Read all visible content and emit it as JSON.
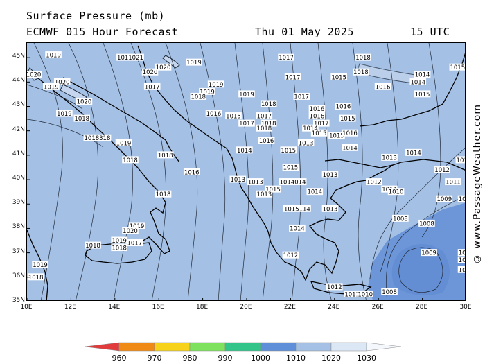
{
  "header": {
    "title": "Surface Pressure (mb)",
    "model": "ECMWF 015 Hour Forecast",
    "date": "Thu 01 May 2025",
    "time": "15 UTC"
  },
  "watermark": "© www.PassageWeather.com",
  "map": {
    "lat_labels": [
      "45N",
      "44N",
      "43N",
      "42N",
      "41N",
      "40N",
      "39N",
      "38N",
      "37N",
      "36N",
      "35N"
    ],
    "lon_labels": [
      "10E",
      "12E",
      "14E",
      "16E",
      "18E",
      "20E",
      "22E",
      "24E",
      "26E",
      "28E",
      "30E"
    ],
    "lat_range": [
      35,
      45.6
    ],
    "lon_range": [
      10,
      30
    ],
    "colors": {
      "sea": "#a4c0e4",
      "low_pressure_1010": "#6d96d8",
      "contour": "#202a3a",
      "land_highlight": "#c6d6ee"
    },
    "isobar_labels": [
      {
        "text": "1019",
        "lon": 11.2,
        "lat": 45.1
      },
      {
        "text": "1011021",
        "lon": 14.7,
        "lat": 45.0
      },
      {
        "text": "1019",
        "lon": 17.6,
        "lat": 44.8
      },
      {
        "text": "1017",
        "lon": 21.8,
        "lat": 45.0
      },
      {
        "text": "1018",
        "lon": 25.3,
        "lat": 45.0
      },
      {
        "text": "1015",
        "lon": 29.6,
        "lat": 44.6
      },
      {
        "text": "1020",
        "lon": 10.3,
        "lat": 44.3
      },
      {
        "text": "1020",
        "lon": 15.6,
        "lat": 44.4
      },
      {
        "text": "1020",
        "lon": 16.2,
        "lat": 44.6
      },
      {
        "text": "1018",
        "lon": 25.2,
        "lat": 44.4
      },
      {
        "text": "1015",
        "lon": 24.2,
        "lat": 44.2
      },
      {
        "text": "1014",
        "lon": 28.0,
        "lat": 44.3
      },
      {
        "text": "1014",
        "lon": 27.8,
        "lat": 44.0
      },
      {
        "text": "1017",
        "lon": 22.1,
        "lat": 44.2
      },
      {
        "text": "1020",
        "lon": 11.6,
        "lat": 44.0
      },
      {
        "text": "1019",
        "lon": 11.1,
        "lat": 43.8
      },
      {
        "text": "1017",
        "lon": 15.7,
        "lat": 43.8
      },
      {
        "text": "1019",
        "lon": 18.6,
        "lat": 43.9
      },
      {
        "text": "1016",
        "lon": 26.2,
        "lat": 43.8
      },
      {
        "text": "1019",
        "lon": 18.2,
        "lat": 43.6
      },
      {
        "text": "1018",
        "lon": 17.8,
        "lat": 43.4
      },
      {
        "text": "1019",
        "lon": 20.0,
        "lat": 43.5
      },
      {
        "text": "1017",
        "lon": 22.5,
        "lat": 43.4
      },
      {
        "text": "1015",
        "lon": 28.0,
        "lat": 43.5
      },
      {
        "text": "1020",
        "lon": 12.6,
        "lat": 43.2
      },
      {
        "text": "1018",
        "lon": 21.0,
        "lat": 43.1
      },
      {
        "text": "1016",
        "lon": 23.2,
        "lat": 42.9
      },
      {
        "text": "1016",
        "lon": 24.4,
        "lat": 43.0
      },
      {
        "text": "1019",
        "lon": 11.7,
        "lat": 42.7
      },
      {
        "text": "1018",
        "lon": 12.5,
        "lat": 42.5
      },
      {
        "text": "1016",
        "lon": 18.5,
        "lat": 42.7
      },
      {
        "text": "1015",
        "lon": 19.4,
        "lat": 42.6
      },
      {
        "text": "1017",
        "lon": 20.8,
        "lat": 42.6
      },
      {
        "text": "1016",
        "lon": 23.2,
        "lat": 42.6
      },
      {
        "text": "1015",
        "lon": 24.6,
        "lat": 42.5
      },
      {
        "text": "1017",
        "lon": 20.0,
        "lat": 42.3
      },
      {
        "text": "1018",
        "lon": 21.0,
        "lat": 42.3
      },
      {
        "text": "1017",
        "lon": 23.4,
        "lat": 42.3
      },
      {
        "text": "1018",
        "lon": 20.8,
        "lat": 42.1
      },
      {
        "text": "1014",
        "lon": 22.9,
        "lat": 42.1
      },
      {
        "text": "1015",
        "lon": 23.3,
        "lat": 41.9
      },
      {
        "text": "1015",
        "lon": 24.1,
        "lat": 41.8
      },
      {
        "text": "1016",
        "lon": 24.7,
        "lat": 41.9
      },
      {
        "text": "1016",
        "lon": 20.9,
        "lat": 41.6
      },
      {
        "text": "1018318",
        "lon": 13.2,
        "lat": 41.7
      },
      {
        "text": "1019",
        "lon": 14.4,
        "lat": 41.5
      },
      {
        "text": "1013",
        "lon": 22.7,
        "lat": 41.5
      },
      {
        "text": "1014",
        "lon": 24.7,
        "lat": 41.3
      },
      {
        "text": "1014",
        "lon": 19.9,
        "lat": 41.2
      },
      {
        "text": "1015",
        "lon": 21.9,
        "lat": 41.2
      },
      {
        "text": "1014",
        "lon": 27.6,
        "lat": 41.1
      },
      {
        "text": "1018",
        "lon": 16.3,
        "lat": 41.0
      },
      {
        "text": "1013",
        "lon": 26.5,
        "lat": 40.9
      },
      {
        "text": "101",
        "lon": 29.8,
        "lat": 40.8
      },
      {
        "text": "1018",
        "lon": 14.7,
        "lat": 40.8
      },
      {
        "text": "1015",
        "lon": 22.0,
        "lat": 40.5
      },
      {
        "text": "1012",
        "lon": 28.9,
        "lat": 40.4
      },
      {
        "text": "1016",
        "lon": 17.5,
        "lat": 40.3
      },
      {
        "text": "1013",
        "lon": 23.8,
        "lat": 40.2
      },
      {
        "text": "1013",
        "lon": 19.6,
        "lat": 40.0
      },
      {
        "text": "1013",
        "lon": 20.4,
        "lat": 39.9
      },
      {
        "text": "1014014",
        "lon": 22.1,
        "lat": 39.9
      },
      {
        "text": "1012",
        "lon": 25.8,
        "lat": 39.9
      },
      {
        "text": "1011",
        "lon": 29.4,
        "lat": 39.9
      },
      {
        "text": "1015",
        "lon": 21.2,
        "lat": 39.6
      },
      {
        "text": "1014",
        "lon": 23.1,
        "lat": 39.5
      },
      {
        "text": "1011",
        "lon": 26.5,
        "lat": 39.6
      },
      {
        "text": "1010",
        "lon": 26.8,
        "lat": 39.5
      },
      {
        "text": "1018",
        "lon": 16.2,
        "lat": 39.4
      },
      {
        "text": "1013",
        "lon": 20.8,
        "lat": 39.4
      },
      {
        "text": "1009",
        "lon": 29.0,
        "lat": 39.2
      },
      {
        "text": "100",
        "lon": 29.9,
        "lat": 39.2
      },
      {
        "text": "1015114",
        "lon": 22.3,
        "lat": 38.8
      },
      {
        "text": "1013",
        "lon": 23.8,
        "lat": 38.8
      },
      {
        "text": "1008",
        "lon": 27.0,
        "lat": 38.4
      },
      {
        "text": "1008",
        "lon": 28.2,
        "lat": 38.2
      },
      {
        "text": "1019",
        "lon": 15.0,
        "lat": 38.1
      },
      {
        "text": "1020",
        "lon": 14.7,
        "lat": 37.9
      },
      {
        "text": "1014",
        "lon": 22.3,
        "lat": 38.0
      },
      {
        "text": "1019",
        "lon": 14.2,
        "lat": 37.5
      },
      {
        "text": "1017",
        "lon": 14.9,
        "lat": 37.4
      },
      {
        "text": "1018",
        "lon": 13.0,
        "lat": 37.3
      },
      {
        "text": "1018",
        "lon": 14.2,
        "lat": 37.2
      },
      {
        "text": "1009",
        "lon": 28.3,
        "lat": 37.0
      },
      {
        "text": "100",
        "lon": 29.9,
        "lat": 37.0
      },
      {
        "text": "100",
        "lon": 29.9,
        "lat": 36.7
      },
      {
        "text": "1012",
        "lon": 22.0,
        "lat": 36.9
      },
      {
        "text": "101",
        "lon": 29.9,
        "lat": 36.3
      },
      {
        "text": "1019",
        "lon": 10.6,
        "lat": 36.5
      },
      {
        "text": "1018",
        "lon": 10.4,
        "lat": 36.0
      },
      {
        "text": "1008",
        "lon": 26.5,
        "lat": 35.4
      },
      {
        "text": "1012",
        "lon": 24.0,
        "lat": 35.6
      },
      {
        "text": "1011",
        "lon": 24.8,
        "lat": 35.3
      },
      {
        "text": "1010",
        "lon": 25.4,
        "lat": 35.3
      }
    ]
  },
  "legend": {
    "labels": [
      "960",
      "970",
      "980",
      "990",
      "1000",
      "1010",
      "1020",
      "1030"
    ],
    "colors": [
      "#e23b3b",
      "#f08a16",
      "#f6d21a",
      "#7ee25e",
      "#33c48a",
      "#5f8fd8",
      "#a4c0e4",
      "#dce7f6",
      "#f4f7fc"
    ]
  }
}
